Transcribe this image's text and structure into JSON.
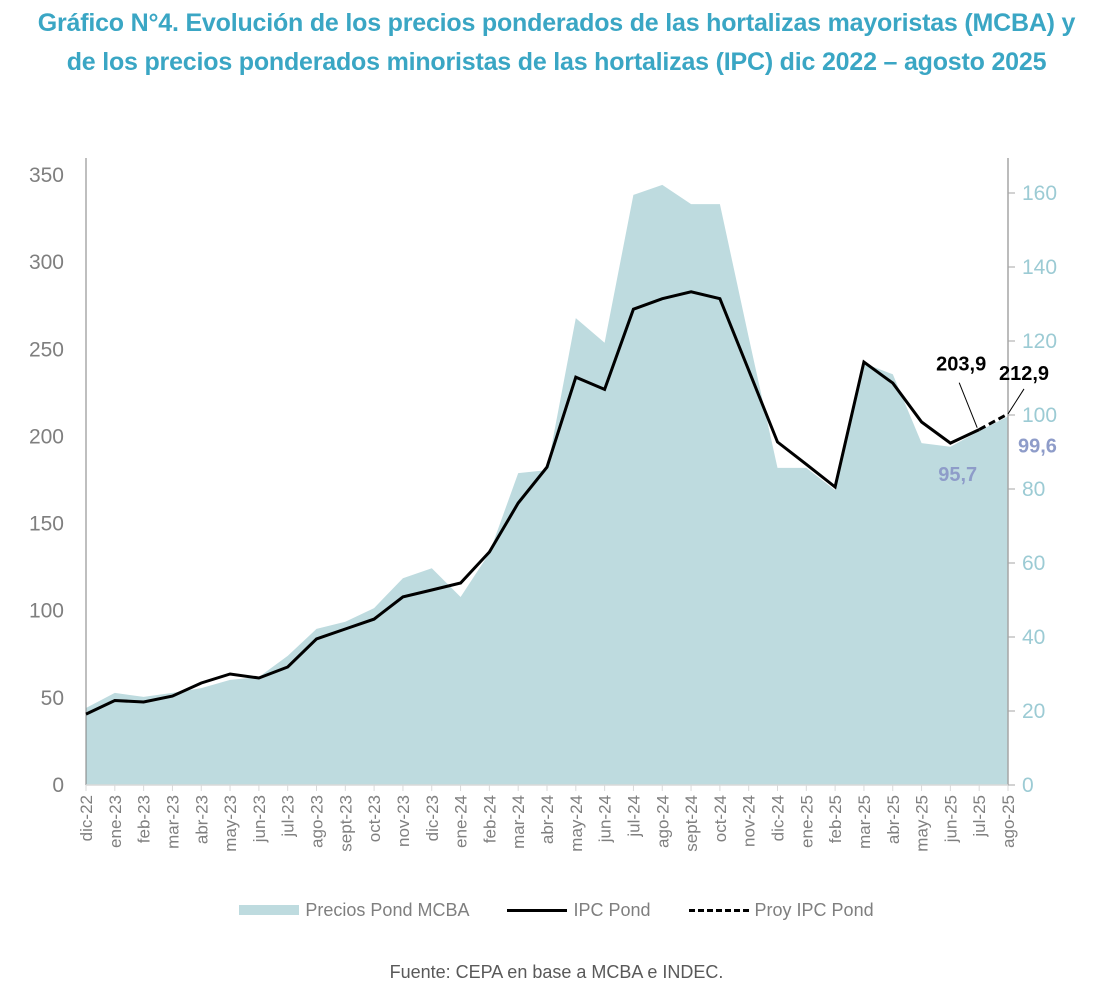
{
  "title": "Gráfico N°4. Evolución de los precios ponderados de las hortalizas mayoristas (MCBA) y de los precios ponderados minoristas de las hortalizas (IPC) dic 2022 – agosto 2025",
  "source": "Fuente: CEPA en base a MCBA e INDEC.",
  "colors": {
    "title": "#3aa6c4",
    "area": "#bedbdf",
    "ipc_line": "#000000",
    "left_axis_text": "#7f7f7f",
    "right_axis_text": "#9ccbd4",
    "mcba_annotation": "#8e9cc9"
  },
  "chart_data": {
    "type": "area",
    "title": "Gráfico N°4. Evolución de los precios ponderados de las hortalizas mayoristas (MCBA) y de los precios ponderados minoristas de las hortalizas (IPC) dic 2022 – agosto 2025",
    "categories": [
      "dic-22",
      "ene-23",
      "feb-23",
      "mar-23",
      "abr-23",
      "may-23",
      "jun-23",
      "jul-23",
      "ago-23",
      "sept-23",
      "oct-23",
      "nov-23",
      "dic-23",
      "ene-24",
      "feb-24",
      "mar-24",
      "abr-24",
      "may-24",
      "jun-24",
      "jul-24",
      "ago-24",
      "sept-24",
      "oct-24",
      "nov-24",
      "dic-24",
      "ene-25",
      "feb-25",
      "mar-25",
      "abr-25",
      "may-25",
      "jun-25",
      "jul-25",
      "ago-25"
    ],
    "series": [
      {
        "name": "Precios Pond MCBA",
        "type": "area",
        "axis": "right",
        "values": [
          20.8,
          24.9,
          23.8,
          24.9,
          26.2,
          28.4,
          29.2,
          34.9,
          42.2,
          44.1,
          47.8,
          55.9,
          58.6,
          50.8,
          62.7,
          84.3,
          85.1,
          126.2,
          119.5,
          159.5,
          162.2,
          157.0,
          157.0,
          121.0,
          85.7,
          85.7,
          79.7,
          114.0,
          111.0,
          92.4,
          91.4,
          95.7,
          99.6
        ]
      },
      {
        "name": "IPC Pond",
        "type": "line",
        "axis": "left",
        "values": [
          40.7,
          48.5,
          47.6,
          51.0,
          58.5,
          63.7,
          61.4,
          67.7,
          83.8,
          89.5,
          95.2,
          107.9,
          111.9,
          115.9,
          133.7,
          161.8,
          182.4,
          234.0,
          227.0,
          273.0,
          279.0,
          283.0,
          279.0,
          238.0,
          196.8,
          184.0,
          171.0,
          242.7,
          230.6,
          208.3,
          196.2,
          203.9,
          null
        ]
      },
      {
        "name": "Proy IPC Pond",
        "type": "line-dashed",
        "axis": "left",
        "values": [
          null,
          null,
          null,
          null,
          null,
          null,
          null,
          null,
          null,
          null,
          null,
          null,
          null,
          null,
          null,
          null,
          null,
          null,
          null,
          null,
          null,
          null,
          null,
          null,
          null,
          null,
          null,
          null,
          null,
          null,
          null,
          203.9,
          212.9
        ]
      }
    ],
    "left_axis": {
      "ylim": [
        0,
        350
      ],
      "ticks": [
        0,
        50,
        100,
        150,
        200,
        250,
        300,
        350
      ]
    },
    "right_axis": {
      "ylim": [
        0,
        165
      ],
      "ticks": [
        0,
        20,
        40,
        60,
        80,
        100,
        120,
        140,
        160
      ]
    },
    "annotations": [
      {
        "text": "203,9",
        "series": "IPC Pond",
        "category": "jul-25",
        "style": "black"
      },
      {
        "text": "212,9",
        "series": "Proy IPC Pond",
        "category": "ago-25",
        "style": "black"
      },
      {
        "text": "95,7",
        "series": "Precios Pond MCBA",
        "category": "jul-25",
        "style": "blue"
      },
      {
        "text": "99,6",
        "series": "Precios Pond MCBA",
        "category": "ago-25",
        "style": "blue"
      }
    ],
    "xlabel": "",
    "ylabel": "",
    "grid": false,
    "legend": {
      "position": "bottom",
      "entries": [
        "Precios Pond MCBA",
        "IPC Pond",
        "Proy IPC Pond"
      ]
    }
  }
}
